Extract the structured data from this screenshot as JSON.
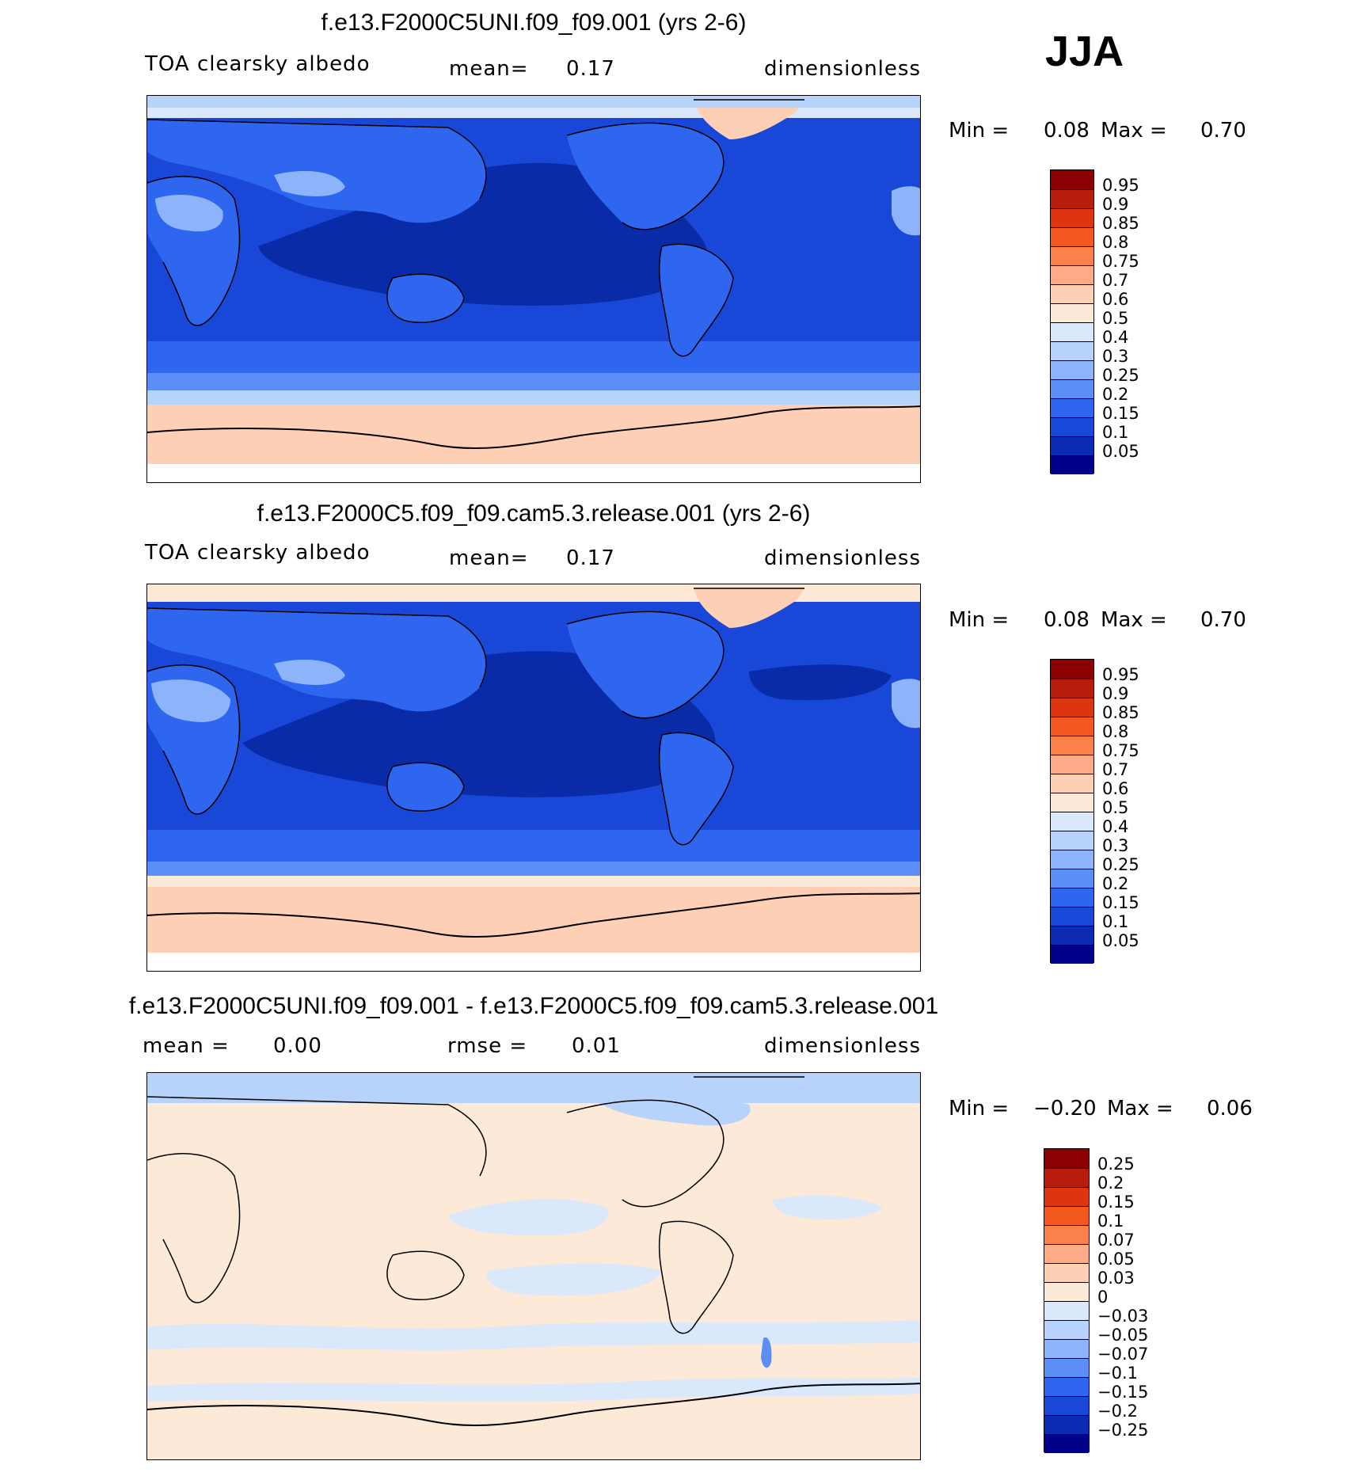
{
  "season": "JJA",
  "panels": [
    {
      "title": "f.e13.F2000C5UNI.f09_f09.001 (yrs 2-6)",
      "left_label": "TOA clearsky albedo",
      "mid_label": "mean=",
      "mid_value": "0.17",
      "right_label": "dimensionless",
      "min_label": "Min =",
      "min_value": "0.08",
      "max_label": "Max =",
      "max_value": "0.70"
    },
    {
      "title": "f.e13.F2000C5.f09_f09.cam5.3.release.001 (yrs 2-6)",
      "left_label": "TOA clearsky albedo",
      "mid_label": "mean=",
      "mid_value": "0.17",
      "right_label": "dimensionless",
      "min_label": "Min =",
      "min_value": "0.08",
      "max_label": "Max =",
      "max_value": "0.70"
    },
    {
      "title": "f.e13.F2000C5UNI.f09_f09.001 - f.e13.F2000C5.f09_f09.cam5.3.release.001",
      "left_label": "mean =",
      "left_value": "0.00",
      "mid_label": "rmse =",
      "mid_value": "0.01",
      "right_label": "dimensionless",
      "min_label": "Min =",
      "min_value": "−0.20",
      "max_label": "Max =",
      "max_value": "0.06"
    }
  ],
  "colorbars": {
    "absolute": {
      "labels": [
        "0.95",
        "0.9",
        "0.85",
        "0.8",
        "0.75",
        "0.7",
        "0.6",
        "0.5",
        "0.4",
        "0.3",
        "0.25",
        "0.2",
        "0.15",
        "0.1",
        "0.05"
      ],
      "colors": [
        "#8b0000",
        "#b71c0c",
        "#dd3510",
        "#f4581f",
        "#fb8049",
        "#fdab86",
        "#fdcfb4",
        "#fde9d8",
        "#d9e8fb",
        "#b7d2fb",
        "#8db4fa",
        "#5b8ff5",
        "#2f66ef",
        "#1947d8",
        "#0a2bb2",
        "#00008b"
      ]
    },
    "difference": {
      "labels": [
        "0.25",
        "0.2",
        "0.15",
        "0.1",
        "0.07",
        "0.05",
        "0.03",
        "0",
        "−0.03",
        "−0.05",
        "−0.07",
        "−0.1",
        "−0.15",
        "−0.2",
        "−0.25"
      ],
      "colors": [
        "#8b0000",
        "#b71c0c",
        "#dd3510",
        "#f4581f",
        "#fb8049",
        "#fdab86",
        "#fdcfb4",
        "#fde9d8",
        "#d9e8fb",
        "#b7d2fb",
        "#8db4fa",
        "#5b8ff5",
        "#2f66ef",
        "#1947d8",
        "#0a2bb2",
        "#00008b"
      ]
    }
  },
  "map_colors": {
    "deep": "#0a2ba8",
    "mid": "#1947d8",
    "bright": "#2f66ef",
    "light": "#5b8ff5",
    "pale": "#b7d2fb",
    "paleblue": "#d9e8fb",
    "ice": "#fdcfb4",
    "diff_bg": "#fde9d8",
    "diff_blue": "#d9e8fb",
    "diff_blue2": "#b7d2fb"
  }
}
